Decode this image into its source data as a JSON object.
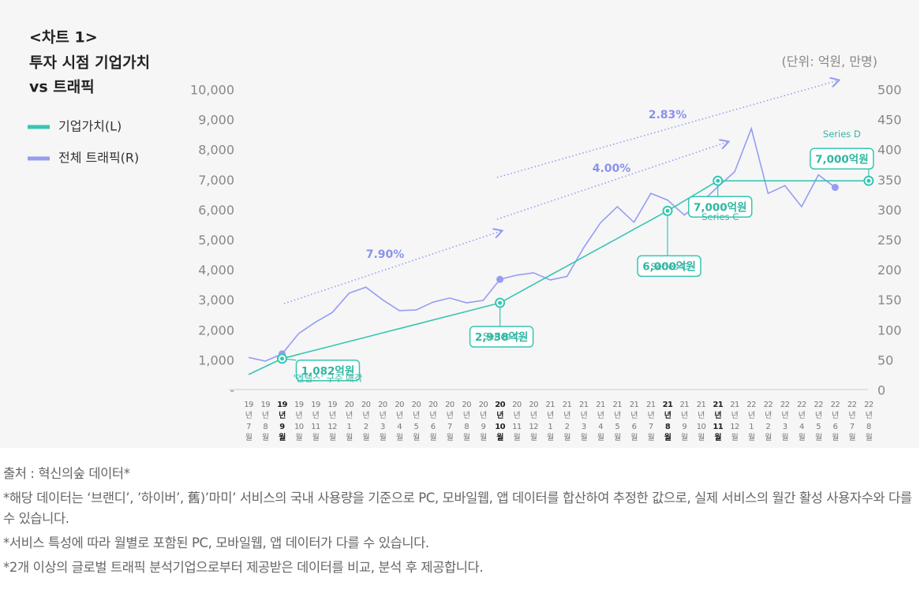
{
  "chart_data": {
    "type": "line",
    "title_lines": [
      "<차트 1>",
      "투자 시점 기업가치",
      "vs 트래픽"
    ],
    "unit_label": "(단위: 억원, 만명)",
    "categories": [
      "19년 7월",
      "19년 8월",
      "19년 9월",
      "19년 10월",
      "19년 11월",
      "19년 12월",
      "20년 1월",
      "20년 2월",
      "20년 3월",
      "20년 4월",
      "20년 5월",
      "20년 6월",
      "20년 7월",
      "20년 8월",
      "20년 9월",
      "20년 10월",
      "20년 11월",
      "20년 12월",
      "21년 1월",
      "21년 2월",
      "21년 3월",
      "21년 4월",
      "21년 5월",
      "21년 6월",
      "21년 7월",
      "21년 8월",
      "21년 9월",
      "21년 10월",
      "21년 11월",
      "21년 12월",
      "22년 1월",
      "22년 2월",
      "22년 3월",
      "22년 4월",
      "22년 5월",
      "22년 6월",
      "22년 7월",
      "22년 8월"
    ],
    "bold_categories": [
      2,
      15,
      25,
      28
    ],
    "series": [
      {
        "name": "기업가치(L)",
        "color": "#35c6b2",
        "axis": "y",
        "values": [
          550,
          816,
          1082,
          1225,
          1368,
          1510,
          1653,
          1796,
          1939,
          2081,
          2224,
          2367,
          2510,
          2652,
          2795,
          2938,
          3244,
          3550,
          3857,
          4163,
          4469,
          4775,
          5081,
          5388,
          5694,
          6000,
          6333,
          6667,
          7000,
          7000,
          7000,
          7000,
          7000,
          7000,
          7000,
          7000,
          7000,
          7000
        ],
        "value_labels": [
          null,
          null,
          "1,082억원",
          null,
          null,
          null,
          null,
          null,
          null,
          null,
          null,
          null,
          null,
          null,
          null,
          "2,938억원",
          null,
          null,
          null,
          null,
          null,
          null,
          null,
          null,
          null,
          "6,000억원",
          null,
          null,
          "7,000억원",
          null,
          null,
          null,
          null,
          null,
          null,
          null,
          null,
          "7,000억원"
        ],
        "value_notes": [
          null,
          null,
          "'엔텔스' 구주 매각",
          null,
          null,
          null,
          null,
          null,
          null,
          null,
          null,
          null,
          null,
          null,
          null,
          "Series C",
          null,
          null,
          null,
          null,
          null,
          null,
          null,
          null,
          null,
          "Series C",
          null,
          null,
          "Series C",
          null,
          null,
          null,
          null,
          null,
          null,
          null,
          null,
          "Series D"
        ]
      },
      {
        "name": "전체 트래픽(R)",
        "color": "#959df0",
        "axis": "y2",
        "values": [
          56,
          50,
          62,
          96,
          115,
          131,
          163,
          173,
          152,
          134,
          135,
          148,
          155,
          147,
          151,
          186,
          193,
          197,
          185,
          191,
          239,
          280,
          307,
          281,
          329,
          318,
          293,
          314,
          340,
          365,
          437,
          329,
          342,
          307,
          360,
          339,
          null,
          null
        ]
      }
    ],
    "trend_labels": [
      "7.90%",
      "4.00%",
      "2.83%"
    ],
    "ylim": [
      0,
      10000
    ],
    "yticks": [
      {
        "value": 0,
        "label": "-"
      },
      {
        "value": 1000,
        "label": "1,000"
      },
      {
        "value": 2000,
        "label": "2,000"
      },
      {
        "value": 3000,
        "label": "3,000"
      },
      {
        "value": 4000,
        "label": "4,000"
      },
      {
        "value": 5000,
        "label": "5,000"
      },
      {
        "value": 6000,
        "label": "6,000"
      },
      {
        "value": 7000,
        "label": "7,000"
      },
      {
        "value": 8000,
        "label": "8,000"
      },
      {
        "value": 9000,
        "label": "9,000"
      },
      {
        "value": 10000,
        "label": "10,000"
      }
    ],
    "y2lim": [
      0,
      500
    ],
    "y2ticks": [
      0,
      50,
      100,
      150,
      200,
      250,
      300,
      350,
      400,
      450,
      500
    ],
    "grid": false
  },
  "source": "출처 : 혁신의숲 데이터*",
  "notes": [
    "*해당 데이터는 ‘브랜디’, ’하이버’, 舊)’마미’ 서비스의 국내 사용량을 기준으로 PC, 모바일웹, 앱 데이터를 합산하여 추정한 값으로, 실제 서비스의 월간 활성 사용자수와 다를 수 있습니다.",
    "*서비스 특성에 따라 월별로 포함된 PC, 모바일웹, 앱 데이터가 다를 수 있습니다.",
    "*2개 이상의 글로벌 트래픽 분석기업으로부터 제공받은 데이터를 비교, 분석 후 제공합니다."
  ]
}
